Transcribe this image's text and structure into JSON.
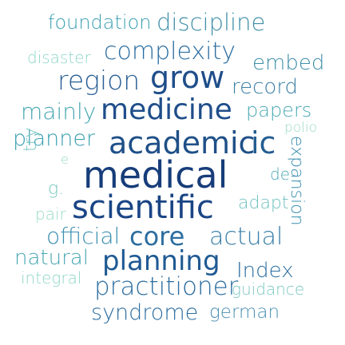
{
  "words": [
    {
      "text": "foundation",
      "color": "#3a9fb0",
      "weight": "light"
    },
    {
      "text": "discipline",
      "color": "#3f8fa8",
      "weight": "light"
    },
    {
      "text": "disaster",
      "color": "#8fd6c8",
      "weight": "light"
    },
    {
      "text": "complexity",
      "color": "#2d6ea0",
      "weight": "light"
    },
    {
      "text": "embed",
      "color": "#3f8fa8",
      "weight": "light"
    },
    {
      "text": "region",
      "color": "#2a5f94",
      "weight": "light"
    },
    {
      "text": "grow",
      "color": "#1f4e8a",
      "weight": "normal"
    },
    {
      "text": "record",
      "color": "#3a7fa4",
      "weight": "light"
    },
    {
      "text": "mainly",
      "color": "#48a7b3",
      "weight": "light"
    },
    {
      "text": "medicine",
      "color": "#1f4e8a",
      "weight": "normal"
    },
    {
      "text": "papers",
      "color": "#4aa9b3",
      "weight": "light"
    },
    {
      "text": "planner",
      "color": "#3a9fb0",
      "weight": "light"
    },
    {
      "text": "academic",
      "color": "#1f5088",
      "weight": "normal"
    },
    {
      "text": "ic",
      "color": "#245d92",
      "weight": "normal"
    },
    {
      "text": "polio",
      "color": "#9adac8",
      "weight": "light"
    },
    {
      "text": "try",
      "color": "#7bc7c0",
      "weight": "light"
    },
    {
      "text": "e",
      "color": "#8fd6c8",
      "weight": "light"
    },
    {
      "text": "medical",
      "color": "#173d7a",
      "weight": "normal"
    },
    {
      "text": "de",
      "color": "#4aa9b3",
      "weight": "light"
    },
    {
      "text": "expansion",
      "color": "#3a8fb0",
      "weight": "light"
    },
    {
      "text": "g.",
      "color": "#7bc7c0",
      "weight": "light"
    },
    {
      "text": "pair",
      "color": "#9adac8",
      "weight": "light"
    },
    {
      "text": "scientific",
      "color": "#1a4585",
      "weight": "normal"
    },
    {
      "text": "adapt",
      "color": "#6dbfbe",
      "weight": "light"
    },
    {
      "text": "official",
      "color": "#3a8fb0",
      "weight": "light"
    },
    {
      "text": "core",
      "color": "#2d6ea0",
      "weight": "normal"
    },
    {
      "text": "actual",
      "color": "#3a7fa8",
      "weight": "light"
    },
    {
      "text": "natural",
      "color": "#48a7b3",
      "weight": "light"
    },
    {
      "text": "planning",
      "color": "#1f5a93",
      "weight": "normal"
    },
    {
      "text": "Index",
      "color": "#2d6ea0",
      "weight": "light"
    },
    {
      "text": "integral",
      "color": "#8fd6c8",
      "weight": "light"
    },
    {
      "text": "practitioner",
      "color": "#2d6ea0",
      "weight": "light"
    },
    {
      "text": "guidance",
      "color": "#7bc7c0",
      "weight": "light"
    },
    {
      "text": "syndrome",
      "color": "#2d6ea0",
      "weight": "light"
    },
    {
      "text": "german",
      "color": "#4a8fb0",
      "weight": "light"
    }
  ]
}
